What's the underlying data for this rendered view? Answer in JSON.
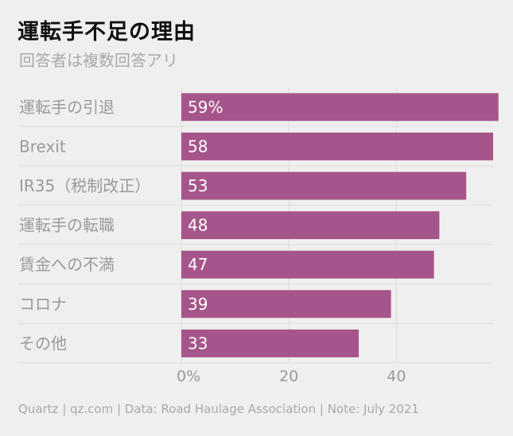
{
  "chart_data": {
    "type": "bar",
    "orientation": "horizontal",
    "title": "運転手不足の理由",
    "subtitle": "回答者は複数回答アリ",
    "categories": [
      "運転手の引退",
      "Brexit",
      "IR35（税制改正）",
      "運転手の転職",
      "賃金への不満",
      "コロナ",
      "その他"
    ],
    "values": [
      59,
      58,
      53,
      48,
      47,
      39,
      33
    ],
    "value_labels": [
      "59%",
      "58",
      "53",
      "48",
      "47",
      "39",
      "33"
    ],
    "x_ticks": [
      0,
      20,
      40
    ],
    "x_tick_labels": [
      "0%",
      "20",
      "40"
    ],
    "xlim": [
      0,
      58
    ],
    "bar_color": "#a6558a",
    "source": "Quartz | qz.com | Data: Road Haulage Association | Note: July 2021"
  }
}
